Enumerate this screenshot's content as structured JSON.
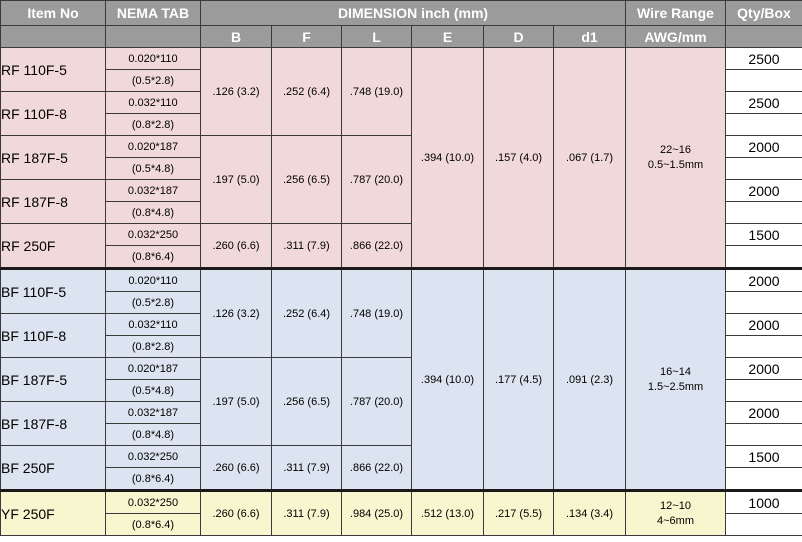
{
  "headers": {
    "item_no": "Item No",
    "nema_tab": "NEMA TAB",
    "dimension": "DIMENSION inch (mm)",
    "wire_range": "Wire Range",
    "qty_box": "Qty/Box",
    "b": "B",
    "f": "F",
    "l": "L",
    "e": "E",
    "d": "D",
    "d1": "d1",
    "awg_mm": "AWG/mm"
  },
  "rf": {
    "items": [
      {
        "name": "RF 110F-5",
        "tab1": "0.020*110",
        "tab2": "(0.5*2.8)",
        "qty": "2500"
      },
      {
        "name": "RF 110F-8",
        "tab1": "0.032*110",
        "tab2": "(0.8*2.8)",
        "qty": "2500"
      },
      {
        "name": "RF 187F-5",
        "tab1": "0.020*187",
        "tab2": "(0.5*4.8)",
        "qty": "2000"
      },
      {
        "name": "RF 187F-8",
        "tab1": "0.032*187",
        "tab2": "(0.8*4.8)",
        "qty": "2000"
      },
      {
        "name": "RF 250F",
        "tab1": "0.032*250",
        "tab2": "(0.8*6.4)",
        "qty": "1500"
      }
    ],
    "groups": [
      {
        "b": ".126 (3.2)",
        "f": ".252 (6.4)",
        "l": ".748 (19.0)"
      },
      {
        "b": ".197 (5.0)",
        "f": ".256 (6.5)",
        "l": ".787 (20.0)"
      },
      {
        "b": ".260 (6.6)",
        "f": ".311 (7.9)",
        "l": ".866 (22.0)"
      }
    ],
    "e": ".394 (10.0)",
    "d": ".157 (4.0)",
    "d1": ".067 (1.7)",
    "wire_awg": "22~16",
    "wire_mm": "0.5~1.5mm"
  },
  "bf": {
    "items": [
      {
        "name": "BF 110F-5",
        "tab1": "0.020*110",
        "tab2": "(0.5*2.8)",
        "qty": "2000"
      },
      {
        "name": "BF 110F-8",
        "tab1": "0.032*110",
        "tab2": "(0.8*2.8)",
        "qty": "2000"
      },
      {
        "name": "BF 187F-5",
        "tab1": "0.020*187",
        "tab2": "(0.5*4.8)",
        "qty": "2000"
      },
      {
        "name": "BF 187F-8",
        "tab1": "0.032*187",
        "tab2": "(0.8*4.8)",
        "qty": "2000"
      },
      {
        "name": "BF 250F",
        "tab1": "0.032*250",
        "tab2": "(0.8*6.4)",
        "qty": "1500"
      }
    ],
    "groups": [
      {
        "b": ".126 (3.2)",
        "f": ".252 (6.4)",
        "l": ".748 (19.0)"
      },
      {
        "b": ".197 (5.0)",
        "f": ".256 (6.5)",
        "l": ".787 (20.0)"
      },
      {
        "b": ".260 (6.6)",
        "f": ".311 (7.9)",
        "l": ".866 (22.0)"
      }
    ],
    "e": ".394 (10.0)",
    "d": ".177 (4.5)",
    "d1": ".091 (2.3)",
    "wire_awg": "16~14",
    "wire_mm": "1.5~2.5mm"
  },
  "yf": {
    "name": "YF 250F",
    "tab1": "0.032*250",
    "tab2": "(0.8*6.4)",
    "b": ".260 (6.6)",
    "f": ".311 (7.9)",
    "l": ".984 (25.0)",
    "e": ".512 (13.0)",
    "d": ".217 (5.5)",
    "d1": ".134 (3.4)",
    "wire_awg": "12~10",
    "wire_mm": "4~6mm",
    "qty": "1000"
  }
}
